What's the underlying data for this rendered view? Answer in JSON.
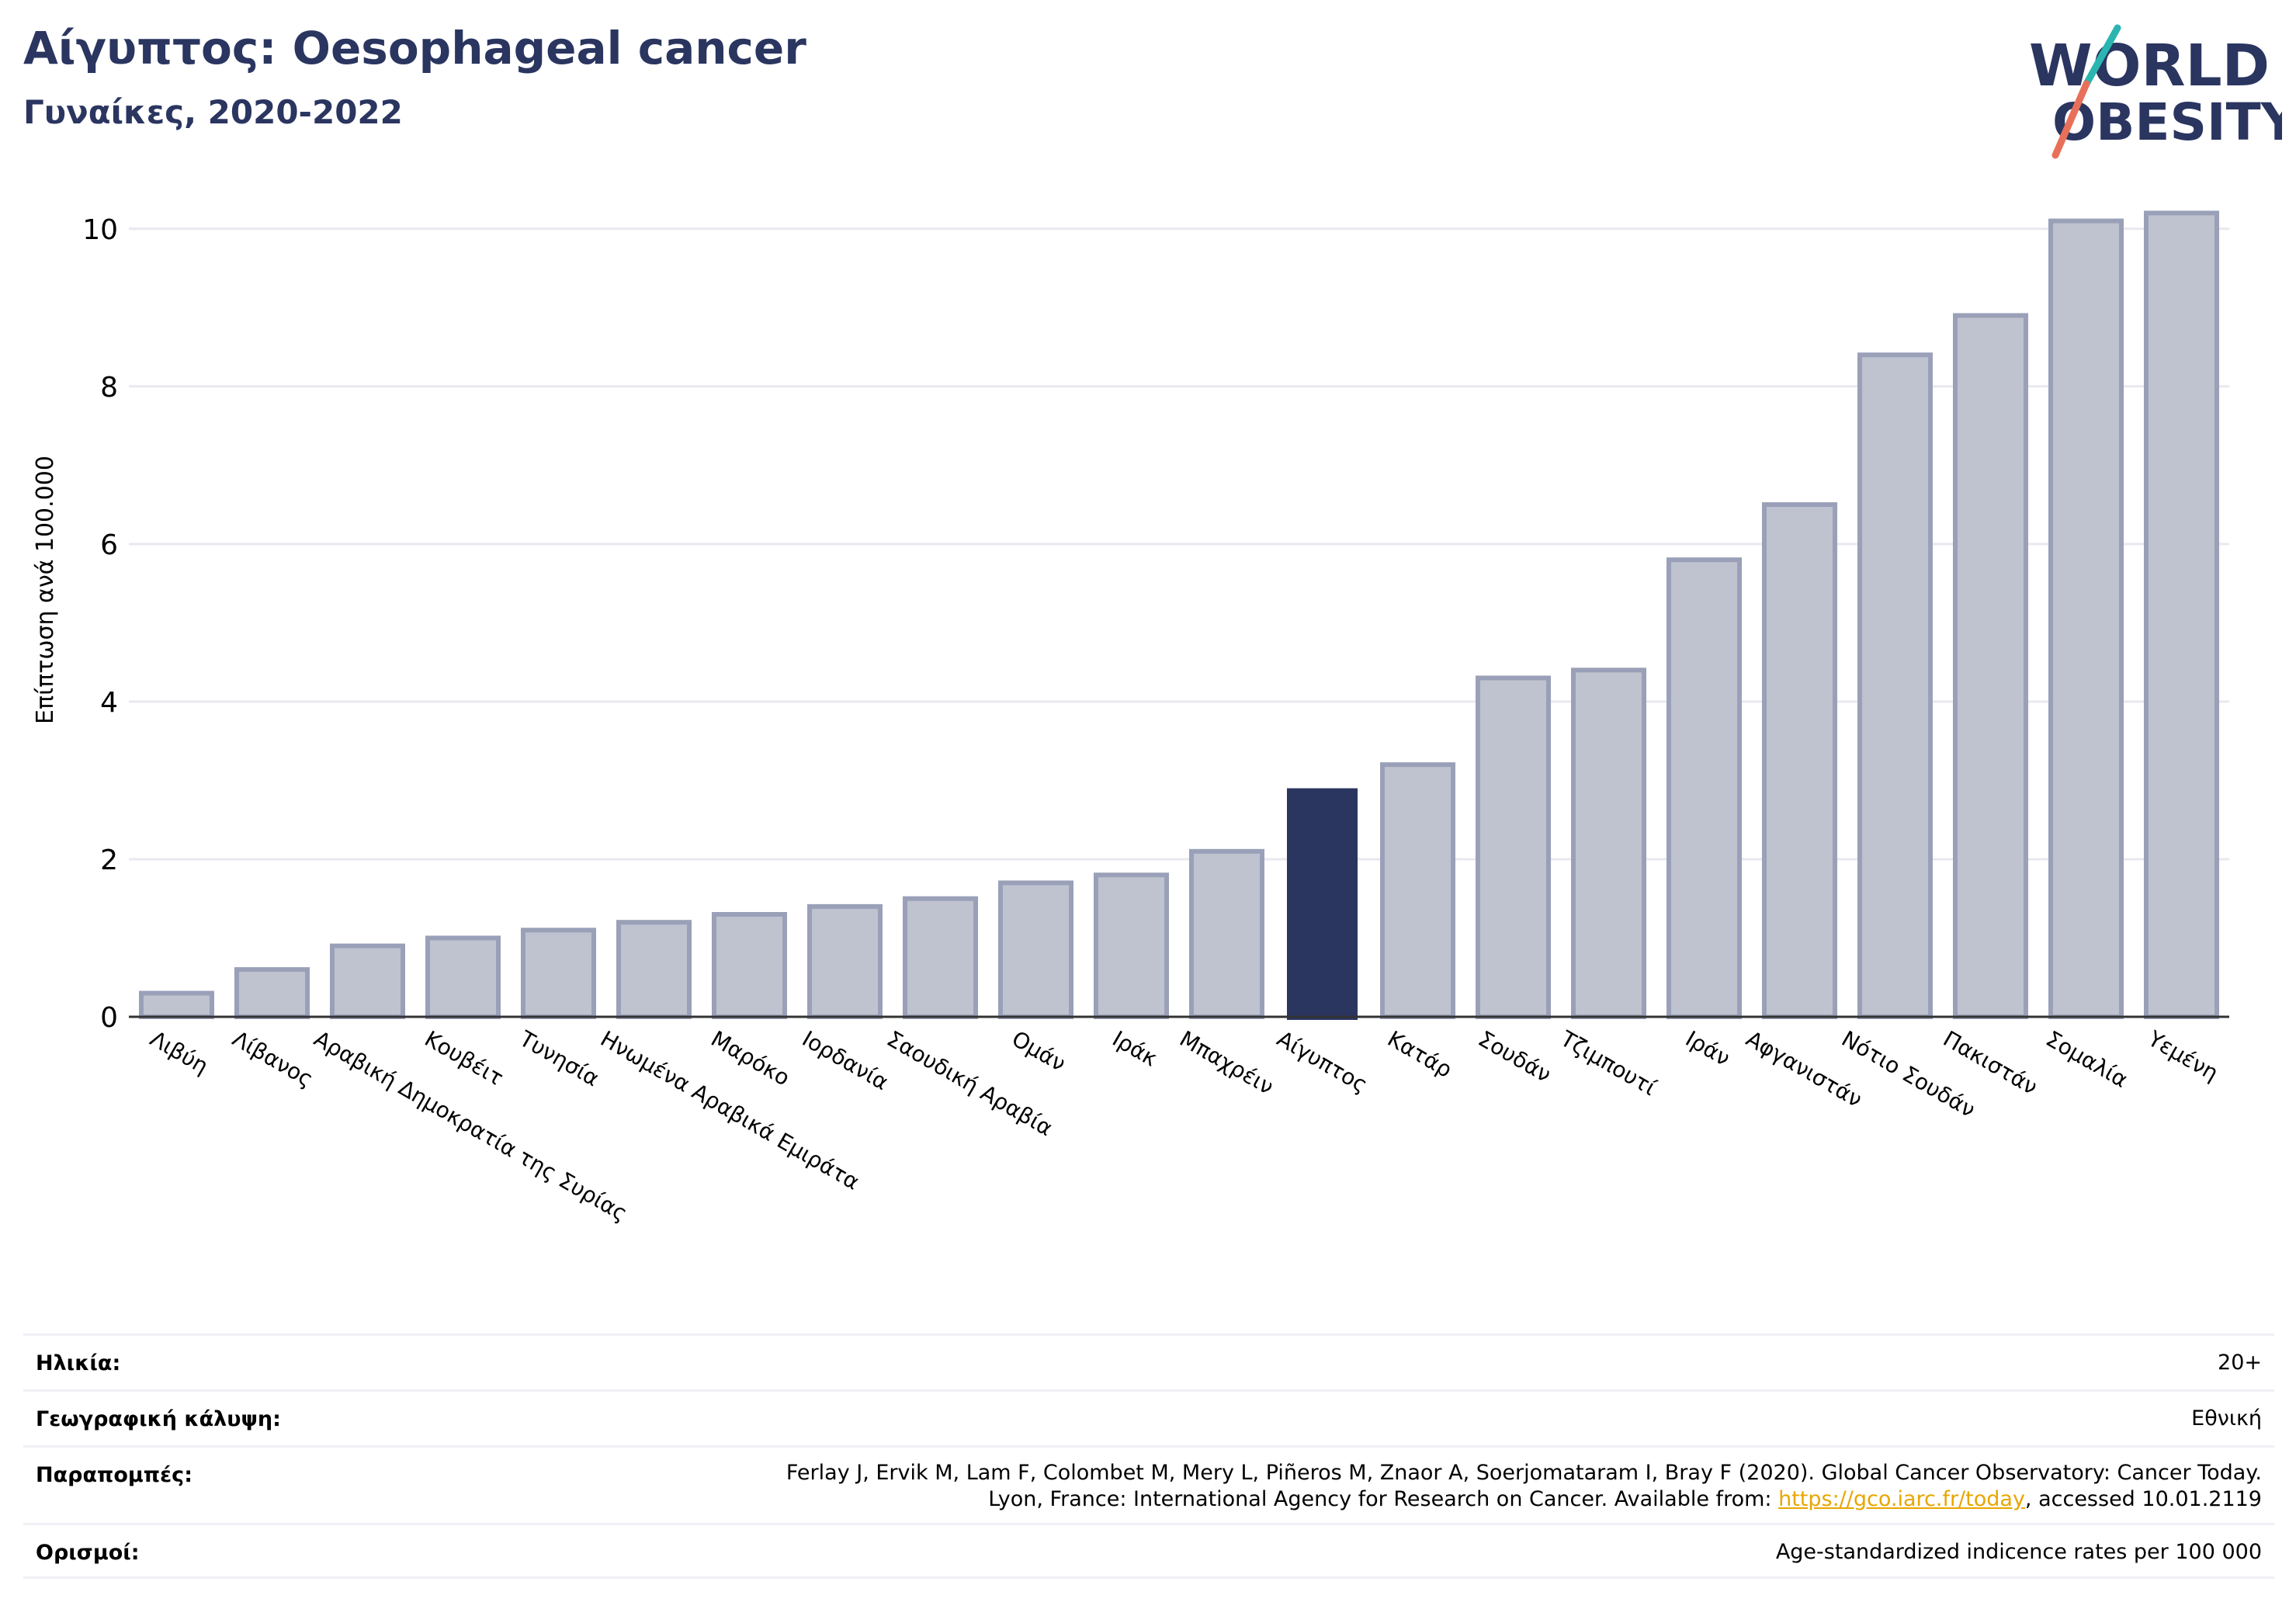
{
  "header": {
    "title": "Αίγυπτος: Oesophageal cancer",
    "subtitle": "Γυναίκες, 2020-2022",
    "logo_text_line1": "WORLD",
    "logo_text_line2": "OBESITY"
  },
  "chart_data": {
    "type": "bar",
    "title": "Αίγυπτος: Oesophageal cancer",
    "subtitle": "Γυναίκες, 2020-2022",
    "xlabel": "",
    "ylabel": "Επίπτωση ανά 100.000",
    "ylim": [
      0,
      10.5
    ],
    "yticks": [
      0,
      2,
      4,
      6,
      8,
      10
    ],
    "grid": true,
    "highlight": "Αίγυπτος",
    "categories": [
      "Λιβύη",
      "Λίβανος",
      "Αραβική Δημοκρατία της Συρίας",
      "Κουβέιτ",
      "Τυνησία",
      "Ηνωμένα Αραβικά Εμιράτα",
      "Μαρόκο",
      "Ιορδανία",
      "Σαουδική Αραβία",
      "Ομάν",
      "Ιράκ",
      "Μπαχρέιν",
      "Αίγυπτος",
      "Κατάρ",
      "Σουδάν",
      "Τζιμπουτί",
      "Ιράν",
      "Αφγανιστάν",
      "Νότιο Σουδάν",
      "Πακιστάν",
      "Σομαλία",
      "Υεμένη"
    ],
    "values": [
      0.3,
      0.6,
      0.9,
      1.0,
      1.1,
      1.2,
      1.3,
      1.4,
      1.5,
      1.7,
      1.8,
      2.1,
      2.9,
      3.2,
      4.3,
      4.4,
      5.8,
      6.5,
      8.4,
      8.9,
      10.1,
      10.2
    ]
  },
  "colors": {
    "title": "#2a3560",
    "bar_fill": "#bfc3cf",
    "bar_stroke": "#9aa0b8",
    "highlight_bar": "#2a3560",
    "grid": "#e8e9ef",
    "link": "#e8a600",
    "logo_slash_teal": "#2bb5b0",
    "logo_slash_coral": "#e8705a"
  },
  "footer": {
    "age_label": "Ηλικία:",
    "age_value": "20+",
    "coverage_label": "Γεωγραφική κάλυψη:",
    "coverage_value": "Εθνική",
    "refs_label": "Παραπομπές:",
    "refs_line1": "Ferlay J, Ervik M, Lam F, Colombet M, Mery L, Piñeros M, Znaor A, Soerjomataram I, Bray F (2020). Global Cancer Observatory: Cancer Today.",
    "refs_line2_pre": "Lyon, France: International Agency for Research on Cancer. Available from: ",
    "refs_link": "https://gco.iarc.fr/today",
    "refs_line2_post": ", accessed 10.01.2119",
    "defs_label": "Ορισμοί:",
    "defs_value": "Age-standardized indicence rates per 100 000"
  }
}
